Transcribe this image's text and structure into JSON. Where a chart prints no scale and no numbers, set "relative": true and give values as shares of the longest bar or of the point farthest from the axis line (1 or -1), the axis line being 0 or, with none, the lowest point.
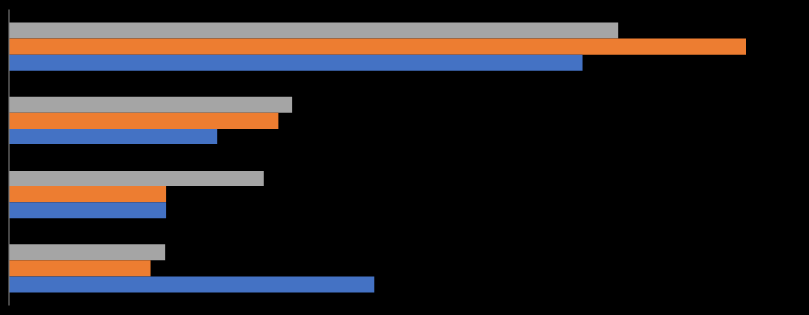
{
  "chart_data": {
    "type": "bar",
    "orientation": "horizontal",
    "relative": true,
    "categories": [
      null,
      null,
      null,
      null
    ],
    "series": [
      {
        "color": "#a5a5a5",
        "values": [
          0.826,
          0.384,
          0.346,
          0.212
        ]
      },
      {
        "color": "#ed7d31",
        "values": [
          1,
          0.366,
          0.213,
          0.192
        ]
      },
      {
        "color": "#4472c4",
        "values": [
          0.778,
          0.283,
          0.213,
          0.496
        ]
      }
    ]
  }
}
